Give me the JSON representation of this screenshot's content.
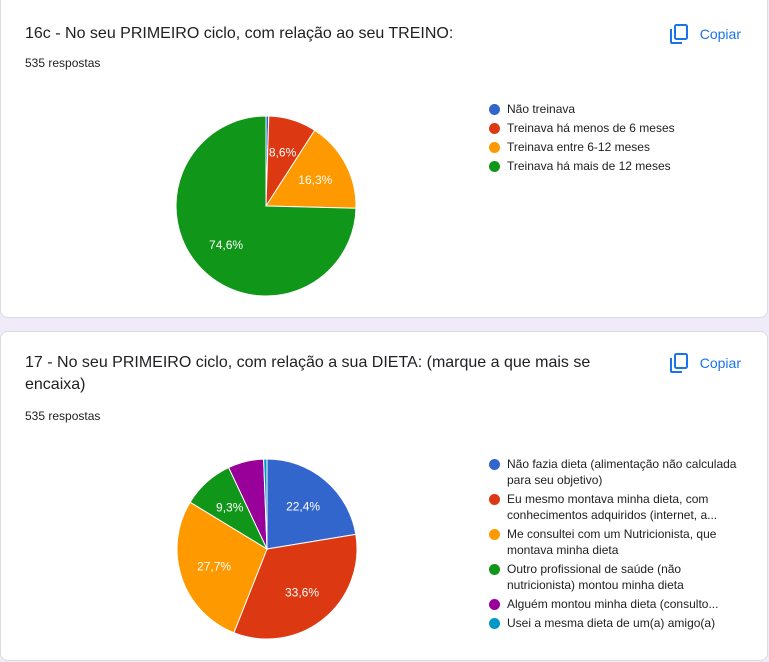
{
  "charts": [
    {
      "title": "16c - No seu PRIMEIRO ciclo, com relação ao seu TREINO:",
      "count": "535 respostas",
      "copy_label": "Copiar",
      "legend": [
        {
          "label": "Não treinava",
          "color": "#3366cc"
        },
        {
          "label": "Treinava há menos de 6 meses",
          "color": "#dc3912"
        },
        {
          "label": "Treinava entre 6-12 meses",
          "color": "#ff9900"
        },
        {
          "label": "Treinava há mais de 12 meses",
          "color": "#109618"
        }
      ],
      "slice_labels": [
        "",
        "8,6%",
        "16,3%",
        "74,6%"
      ]
    },
    {
      "title": "17 - No seu PRIMEIRO ciclo, com relação a sua DIETA: (marque a que mais se encaixa)",
      "count": "535 respostas",
      "copy_label": "Copiar",
      "legend": [
        {
          "label": "Não fazia dieta (alimentação não calculada para seu objetivo)",
          "color": "#3366cc"
        },
        {
          "label": "Eu mesmo montava minha dieta, com conhecimentos adquiridos (internet, a...",
          "color": "#dc3912"
        },
        {
          "label": "Me consultei com um Nutricionista, que montava minha dieta",
          "color": "#ff9900"
        },
        {
          "label": "Outro profissional de saúde (não nutricionista) montou minha dieta",
          "color": "#109618"
        },
        {
          "label": "Alguém montou minha dieta (consulto...",
          "color": "#990099"
        },
        {
          "label": "Usei a mesma dieta de um(a) amigo(a)",
          "color": "#0099c6"
        }
      ],
      "slice_labels": [
        "22,4%",
        "33,6%",
        "27,7%",
        "9,3%",
        "",
        ""
      ]
    }
  ],
  "chart_data": [
    {
      "type": "pie",
      "title": "16c - No seu PRIMEIRO ciclo, com relação ao seu TREINO:",
      "categories": [
        "Não treinava",
        "Treinava há menos de 6 meses",
        "Treinava entre 6-12 meses",
        "Treinava há mais de 12 meses"
      ],
      "values": [
        0.5,
        8.6,
        16.3,
        74.6
      ],
      "colors": [
        "#3366cc",
        "#dc3912",
        "#ff9900",
        "#109618"
      ],
      "legend_position": "right"
    },
    {
      "type": "pie",
      "title": "17 - No seu PRIMEIRO ciclo, com relação a sua DIETA: (marque a que mais se encaixa)",
      "categories": [
        "Não fazia dieta (alimentação não calculada para seu objetivo)",
        "Eu mesmo montava minha dieta, com conhecimentos adquiridos (internet, a...",
        "Me consultei com um Nutricionista, que montava minha dieta",
        "Outro profissional de saúde (não nutricionista) montou minha dieta",
        "Alguém montou minha dieta (consulto...",
        "Usei a mesma dieta de um(a) amigo(a)"
      ],
      "values": [
        22.4,
        33.6,
        27.7,
        9.3,
        6.4,
        0.6
      ],
      "colors": [
        "#3366cc",
        "#dc3912",
        "#ff9900",
        "#109618",
        "#990099",
        "#0099c6"
      ],
      "legend_position": "right"
    }
  ]
}
